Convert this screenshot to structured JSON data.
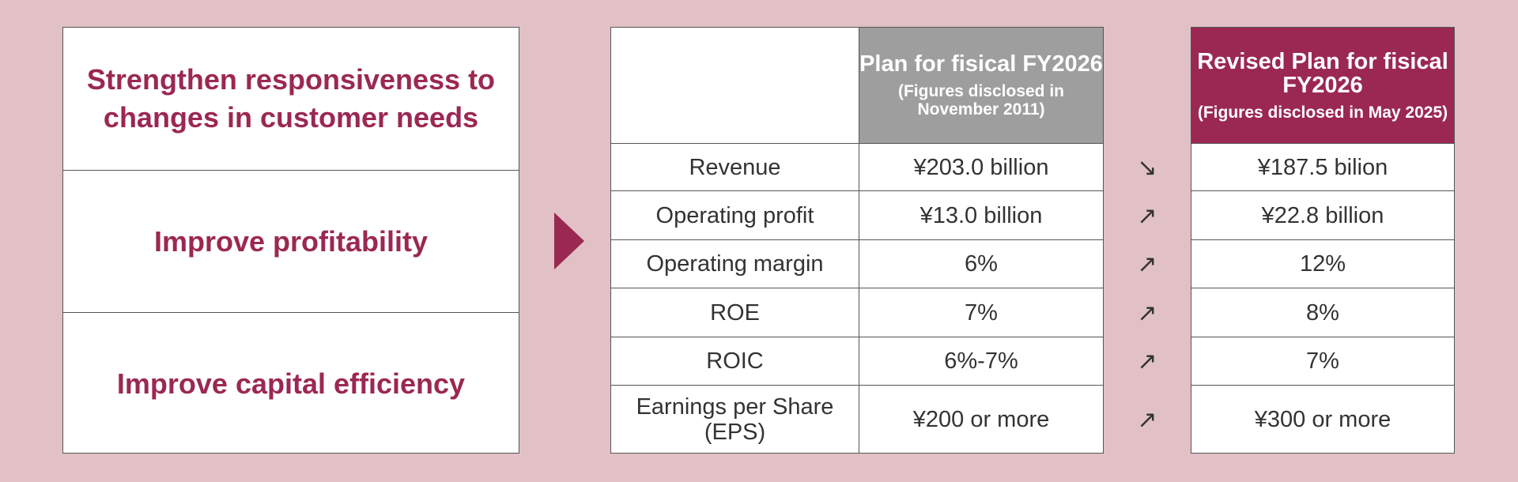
{
  "goals": [
    "Strengthen responsiveness to changes in customer needs",
    "Improve profitability",
    "Improve capital efficiency"
  ],
  "header": {
    "plan_title": "Plan for fisical FY2026",
    "plan_sub": "(Figures disclosed in November 2011)",
    "rev_title": "Revised Plan for fisical FY2026",
    "rev_sub": "(Figures disclosed in May 2025)"
  },
  "rows": [
    {
      "label": "Revenue",
      "plan": "¥203.0 billion",
      "trend": "↘",
      "revised": "¥187.5 bilion"
    },
    {
      "label": "Operating profit",
      "plan": "¥13.0 billion",
      "trend": "↗",
      "revised": "¥22.8 billion"
    },
    {
      "label": "Operating margin",
      "plan": "6%",
      "trend": "↗",
      "revised": "12%"
    },
    {
      "label": "ROE",
      "plan": "7%",
      "trend": "↗",
      "revised": "8%"
    },
    {
      "label": "ROIC",
      "plan": "6%-7%",
      "trend": "↗",
      "revised": "7%"
    },
    {
      "label": "Earnings per Share (EPS)",
      "plan": "¥200 or more",
      "trend": "↗",
      "revised": "¥300 or more"
    }
  ],
  "colors": {
    "background": "#e2c1c6",
    "accent": "#9b2852",
    "plan_header": "#9e9e9e"
  },
  "icons": {
    "transition_arrow": "triangle-right-icon",
    "trend_down": "arrow-down-right-icon",
    "trend_up": "arrow-up-right-icon"
  }
}
